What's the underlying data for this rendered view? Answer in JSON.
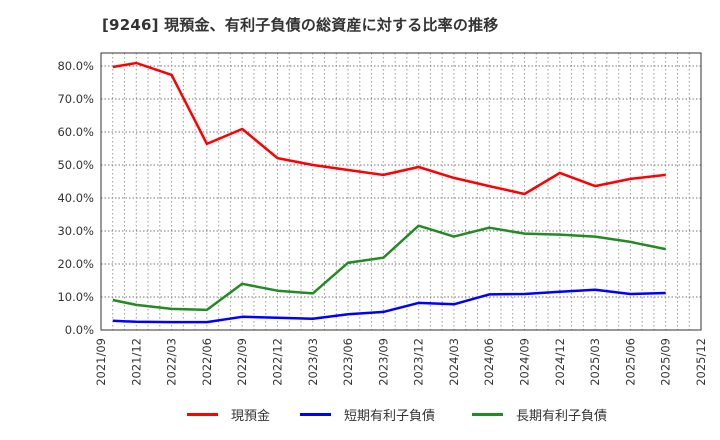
{
  "title": "[9246]  現預金、有利子負債の総資産に対する比率の推移",
  "chart_data": {
    "type": "line",
    "title": "[9246] 現預金、有利子負債の総資産に対する比率の推移",
    "xlabel": "",
    "ylabel": "",
    "ylim": [
      0,
      84
    ],
    "grid": true,
    "legend_position": "bottom",
    "y_ticks": [
      "0.0%",
      "10.0%",
      "20.0%",
      "30.0%",
      "40.0%",
      "50.0%",
      "60.0%",
      "70.0%",
      "80.0%"
    ],
    "x_ticks": [
      "2021/09",
      "2021/12",
      "2022/03",
      "2022/06",
      "2022/09",
      "2022/12",
      "2023/03",
      "2023/06",
      "2023/09",
      "2023/12",
      "2024/03",
      "2024/06",
      "2024/09",
      "2024/12",
      "2025/03",
      "2025/06",
      "2025/09",
      "2025/12"
    ],
    "x": [
      "2021/10",
      "2021/12",
      "2022/03",
      "2022/06",
      "2022/09",
      "2022/12",
      "2023/03",
      "2023/06",
      "2023/09",
      "2023/12",
      "2024/03",
      "2024/06",
      "2024/09",
      "2024/12",
      "2025/03",
      "2025/06",
      "2025/09"
    ],
    "series": [
      {
        "name": "現預金",
        "color": "#ff0000",
        "values": [
          79.7,
          80.9,
          77.3,
          56.4,
          60.9,
          52.1,
          50.0,
          48.5,
          47.0,
          49.4,
          46.1,
          43.6,
          41.2,
          47.6,
          43.6,
          45.8,
          47.0
        ]
      },
      {
        "name": "短期有利子負債",
        "color": "#0000ff",
        "values": [
          2.8,
          2.5,
          2.4,
          2.4,
          4.0,
          3.7,
          3.4,
          4.8,
          5.5,
          8.2,
          7.8,
          10.8,
          10.9,
          11.6,
          12.2,
          10.9,
          11.2
        ]
      },
      {
        "name": "長期有利子負債",
        "color": "#228b22",
        "values": [
          9.1,
          7.6,
          6.4,
          6.1,
          14.0,
          11.9,
          11.1,
          20.4,
          21.9,
          31.6,
          28.3,
          31.0,
          29.2,
          28.9,
          28.3,
          26.7,
          24.5
        ]
      }
    ]
  },
  "legend": [
    {
      "label": "現預金",
      "color": "#ff0000"
    },
    {
      "label": "短期有利子負債",
      "color": "#0000ff"
    },
    {
      "label": "長期有利子負債",
      "color": "#228b22"
    }
  ]
}
